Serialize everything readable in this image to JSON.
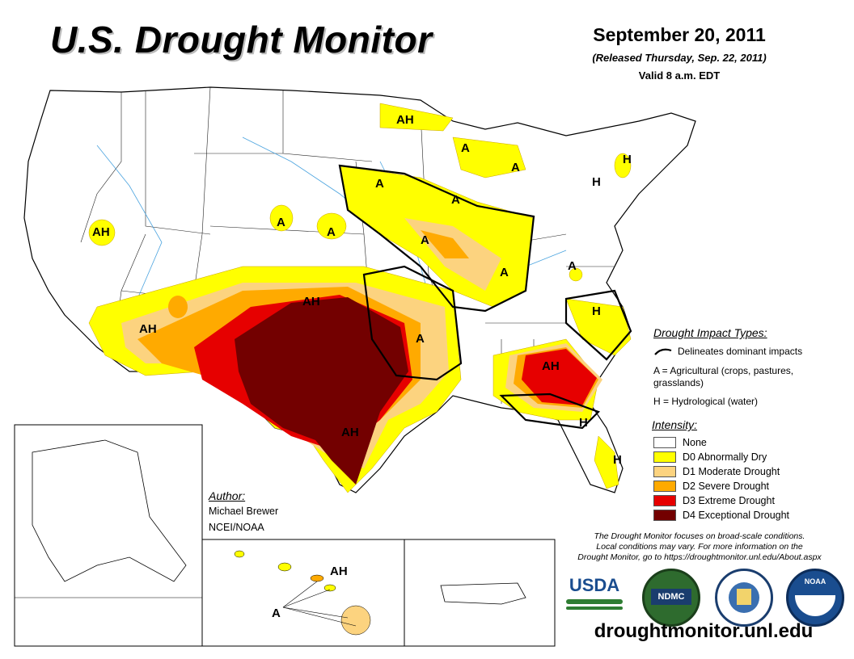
{
  "header": {
    "title": "U.S. Drought Monitor",
    "date": "September 20, 2011",
    "released": "(Released Thursday, Sep. 22, 2011)",
    "valid": "Valid 8 a.m. EDT"
  },
  "impact_types": {
    "heading": "Drought Impact Types:",
    "delineates": "Delineates dominant impacts",
    "agricultural": "A = Agricultural (crops, pastures,",
    "agricultural_2": "grasslands)",
    "hydrological": "H = Hydrological (water)"
  },
  "intensity": {
    "heading": "Intensity:",
    "categories": [
      {
        "label": "None",
        "color": "#ffffff"
      },
      {
        "label": "D0 Abnormally Dry",
        "color": "#ffff00"
      },
      {
        "label": "D1 Moderate Drought",
        "color": "#fcd37f"
      },
      {
        "label": "D2 Severe Drought",
        "color": "#ffaa00"
      },
      {
        "label": "D3 Extreme Drought",
        "color": "#e60000"
      },
      {
        "label": "D4 Exceptional Drought",
        "color": "#730000"
      }
    ]
  },
  "author": {
    "heading": "Author:",
    "name": "Michael Brewer",
    "org": "NCEI/NOAA"
  },
  "disclaimer": {
    "line1": "The Drought Monitor focuses on broad-scale conditions.",
    "line2": "Local conditions may vary. For more information on the",
    "line3": "Drought Monitor, go to https://droughtmonitor.unl.edu/About.aspx"
  },
  "logos": {
    "usda": "USDA",
    "ndmc": "NDMC",
    "noaa": "NOAA"
  },
  "website": "droughtmonitor.unl.edu",
  "map_labels": {
    "AH": "AH",
    "A": "A",
    "H": "H"
  }
}
